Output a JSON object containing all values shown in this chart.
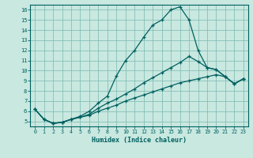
{
  "xlabel": "Humidex (Indice chaleur)",
  "xlim": [
    -0.5,
    23.5
  ],
  "ylim": [
    4.5,
    16.5
  ],
  "xticks": [
    0,
    1,
    2,
    3,
    4,
    5,
    6,
    7,
    8,
    9,
    10,
    11,
    12,
    13,
    14,
    15,
    16,
    17,
    18,
    19,
    20,
    21,
    22,
    23
  ],
  "yticks": [
    5,
    6,
    7,
    8,
    9,
    10,
    11,
    12,
    13,
    14,
    15,
    16
  ],
  "bg_color": "#c8e8e0",
  "grid_color": "#7ab8b0",
  "line_color": "#006060",
  "line1_x": [
    0,
    1,
    2,
    3,
    4,
    5,
    6,
    7,
    8,
    9,
    10,
    11,
    12,
    13,
    14,
    15,
    16,
    17,
    18,
    19,
    20,
    21,
    22,
    23
  ],
  "line1_y": [
    6.2,
    5.2,
    4.8,
    4.9,
    5.2,
    5.5,
    6.0,
    6.8,
    7.5,
    9.5,
    11.0,
    12.0,
    13.3,
    14.5,
    15.0,
    16.0,
    16.3,
    15.0,
    12.0,
    10.3,
    10.1,
    9.4,
    8.7,
    9.2
  ],
  "line2_x": [
    0,
    1,
    2,
    3,
    4,
    5,
    6,
    7,
    8,
    9,
    10,
    11,
    12,
    13,
    14,
    15,
    16,
    17,
    18,
    19,
    20,
    21,
    22,
    23
  ],
  "line2_y": [
    6.2,
    5.2,
    4.8,
    4.9,
    5.2,
    5.4,
    5.7,
    6.3,
    6.8,
    7.2,
    7.7,
    8.2,
    8.8,
    9.3,
    9.8,
    10.3,
    10.8,
    11.4,
    10.9,
    10.3,
    10.1,
    9.4,
    8.7,
    9.2
  ],
  "line3_x": [
    0,
    1,
    2,
    3,
    4,
    5,
    6,
    7,
    8,
    9,
    10,
    11,
    12,
    13,
    14,
    15,
    16,
    17,
    18,
    19,
    20,
    21,
    22,
    23
  ],
  "line3_y": [
    6.2,
    5.2,
    4.8,
    4.9,
    5.2,
    5.4,
    5.6,
    6.0,
    6.3,
    6.6,
    7.0,
    7.3,
    7.6,
    7.9,
    8.2,
    8.5,
    8.8,
    9.0,
    9.2,
    9.4,
    9.6,
    9.4,
    8.7,
    9.2
  ]
}
